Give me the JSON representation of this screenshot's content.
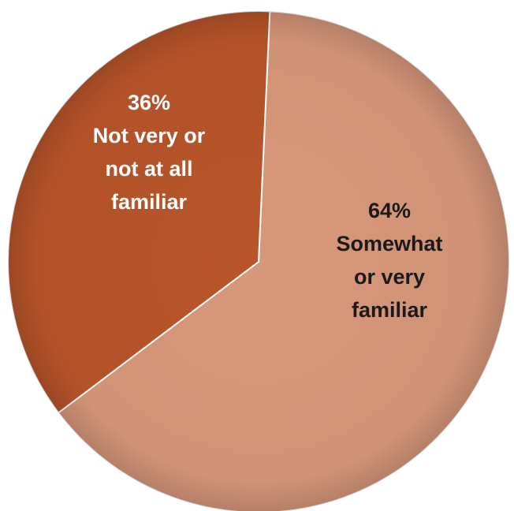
{
  "chart_data": {
    "type": "pie",
    "title": "",
    "legend": "none",
    "slices": [
      {
        "value": 64,
        "label_lines": [
          "64%",
          "Somewhat",
          "or very",
          "familiar"
        ],
        "color": "#d7977a",
        "label_color": "#1a1a1a"
      },
      {
        "value": 36,
        "label_lines": [
          "36%",
          "Not very or",
          "not at all",
          "familiar"
        ],
        "color": "#b8552a",
        "label_color": "#ffffff"
      }
    ]
  }
}
